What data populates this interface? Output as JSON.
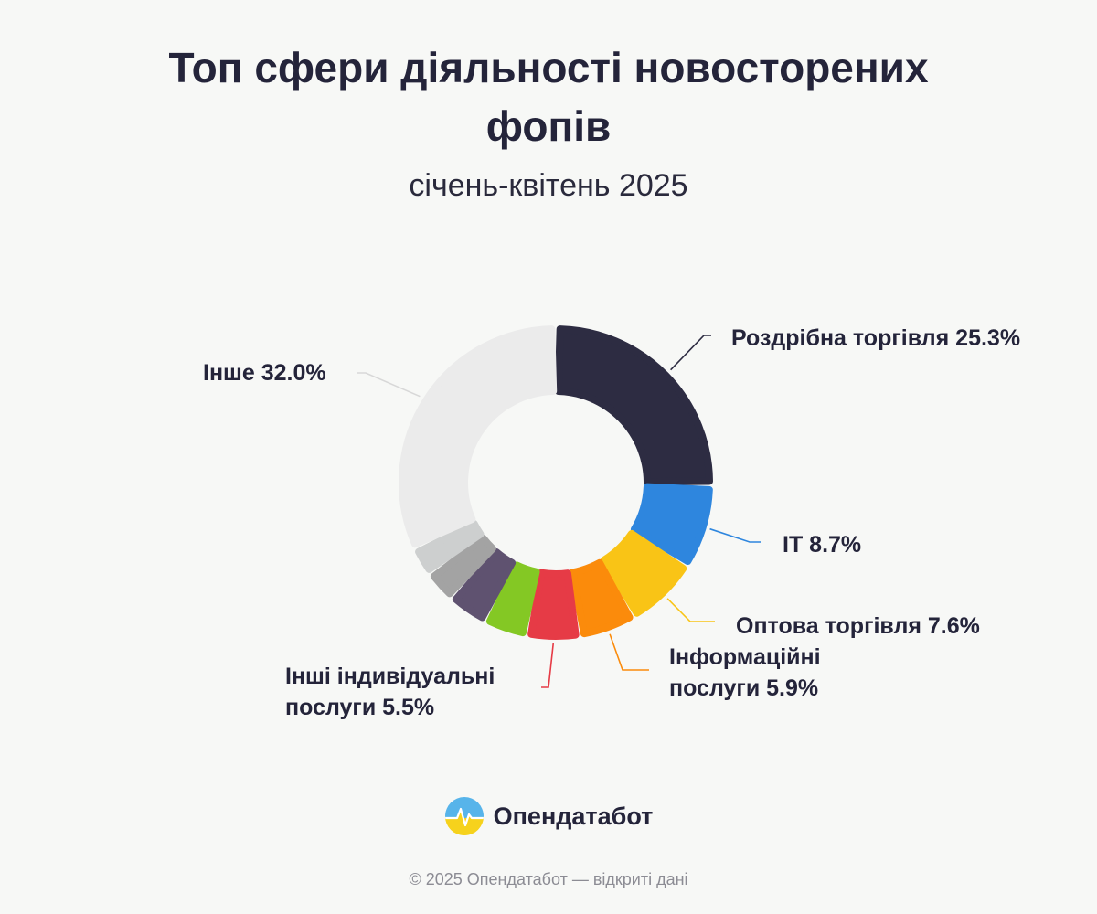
{
  "chart_data": {
    "type": "pie",
    "variant": "donut",
    "title_lines": [
      "Топ сфери діяльності новосторених",
      "фопів"
    ],
    "subtitle": "січень-квітень 2025",
    "slices": [
      {
        "label": "Роздрібна торгівля 25.3%",
        "value": 25.3,
        "color": "#2d2c42"
      },
      {
        "label": "IT 8.7%",
        "value": 8.7,
        "color": "#2e86de"
      },
      {
        "label": "Оптова торгівля 7.6%",
        "value": 7.6,
        "color": "#f9c416"
      },
      {
        "label_lines": [
          "Інформаційні",
          "послуги 5.9%"
        ],
        "value": 5.9,
        "color": "#fb8b0b"
      },
      {
        "label_lines": [
          "Інші індивідуальні",
          "послуги 5.5%"
        ],
        "value": 5.5,
        "color": "#e63b46"
      },
      {
        "value": 4.5,
        "color": "#84c824"
      },
      {
        "value": 4.2,
        "color": "#5f5270"
      },
      {
        "value": 3.3,
        "color": "#a3a3a3"
      },
      {
        "value": 3.0,
        "color": "#cdcfcf"
      },
      {
        "label": "Інше 32.0%",
        "value": 32.0,
        "color": "#ebebeb"
      }
    ]
  },
  "logo": {
    "text": "Опендатабот",
    "icon": "opendatabot-logo-icon"
  },
  "footer": "© 2025 Опендатабот — відкриті дані"
}
